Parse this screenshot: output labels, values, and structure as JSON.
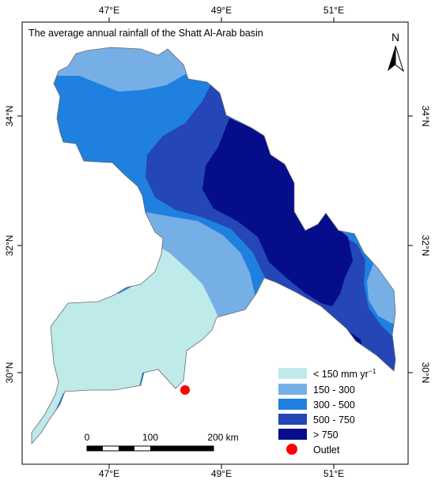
{
  "title": "The average annual rainfall of the Shatt Al-Arab basin",
  "north_label": "N",
  "longitude_labels": [
    "47°E",
    "49°E",
    "51°E"
  ],
  "latitude_labels": [
    "34°N",
    "32°N",
    "30°N"
  ],
  "scale_bar": {
    "labels": [
      "0",
      "100",
      "200 km"
    ]
  },
  "legend": {
    "items": [
      {
        "label": "< 150 mm yr",
        "superscript": "−1",
        "color": "#bfeaea"
      },
      {
        "label": "150 - 300",
        "color": "#76afe6"
      },
      {
        "label": "300 - 500",
        "color": "#1f80df"
      },
      {
        "label": "500 - 750",
        "color": "#2446b6"
      },
      {
        "label": "> 750",
        "color": "#060d8a"
      }
    ],
    "outlet": {
      "label": "Outlet",
      "color": "#ff0000"
    }
  },
  "colors": {
    "zone_lt150": "#bfeaea",
    "zone_150_300": "#76afe6",
    "zone_300_500": "#1f80df",
    "zone_500_750": "#2446b6",
    "zone_gt750": "#060d8a",
    "outlet": "#ff0000"
  }
}
